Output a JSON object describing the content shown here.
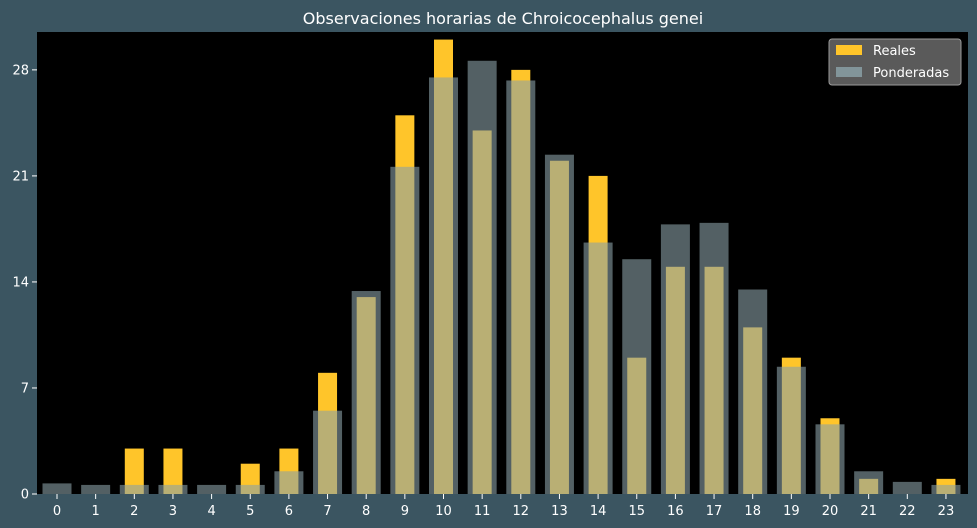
{
  "chart_data": {
    "type": "bar",
    "title": "Observaciones horarias de Chroicocephalus genei",
    "xlabel": "",
    "ylabel": "",
    "categories": [
      "0",
      "1",
      "2",
      "3",
      "4",
      "5",
      "6",
      "7",
      "8",
      "9",
      "10",
      "11",
      "12",
      "13",
      "14",
      "15",
      "16",
      "17",
      "18",
      "19",
      "20",
      "21",
      "22",
      "23"
    ],
    "series": [
      {
        "name": "Reales",
        "color": "#ffc52a",
        "values": [
          0,
          0,
          3,
          3,
          0,
          2,
          3,
          8,
          13,
          25,
          30,
          24,
          28,
          22,
          21,
          9,
          15,
          15,
          11,
          9,
          5,
          1,
          0,
          1
        ]
      },
      {
        "name": "Ponderadas",
        "color": "#8aa0a6",
        "values": [
          0.7,
          0.6,
          0.6,
          0.6,
          0.6,
          0.6,
          1.5,
          5.5,
          13.4,
          21.6,
          27.5,
          28.6,
          27.3,
          22.4,
          16.6,
          15.5,
          17.8,
          17.9,
          13.5,
          8.4,
          4.6,
          1.5,
          0.8,
          0.6
        ]
      }
    ],
    "yticks": [
      0,
      7,
      14,
      21,
      28
    ],
    "ylim": [
      0,
      30.5
    ],
    "grid": false,
    "legend": "top-right"
  }
}
